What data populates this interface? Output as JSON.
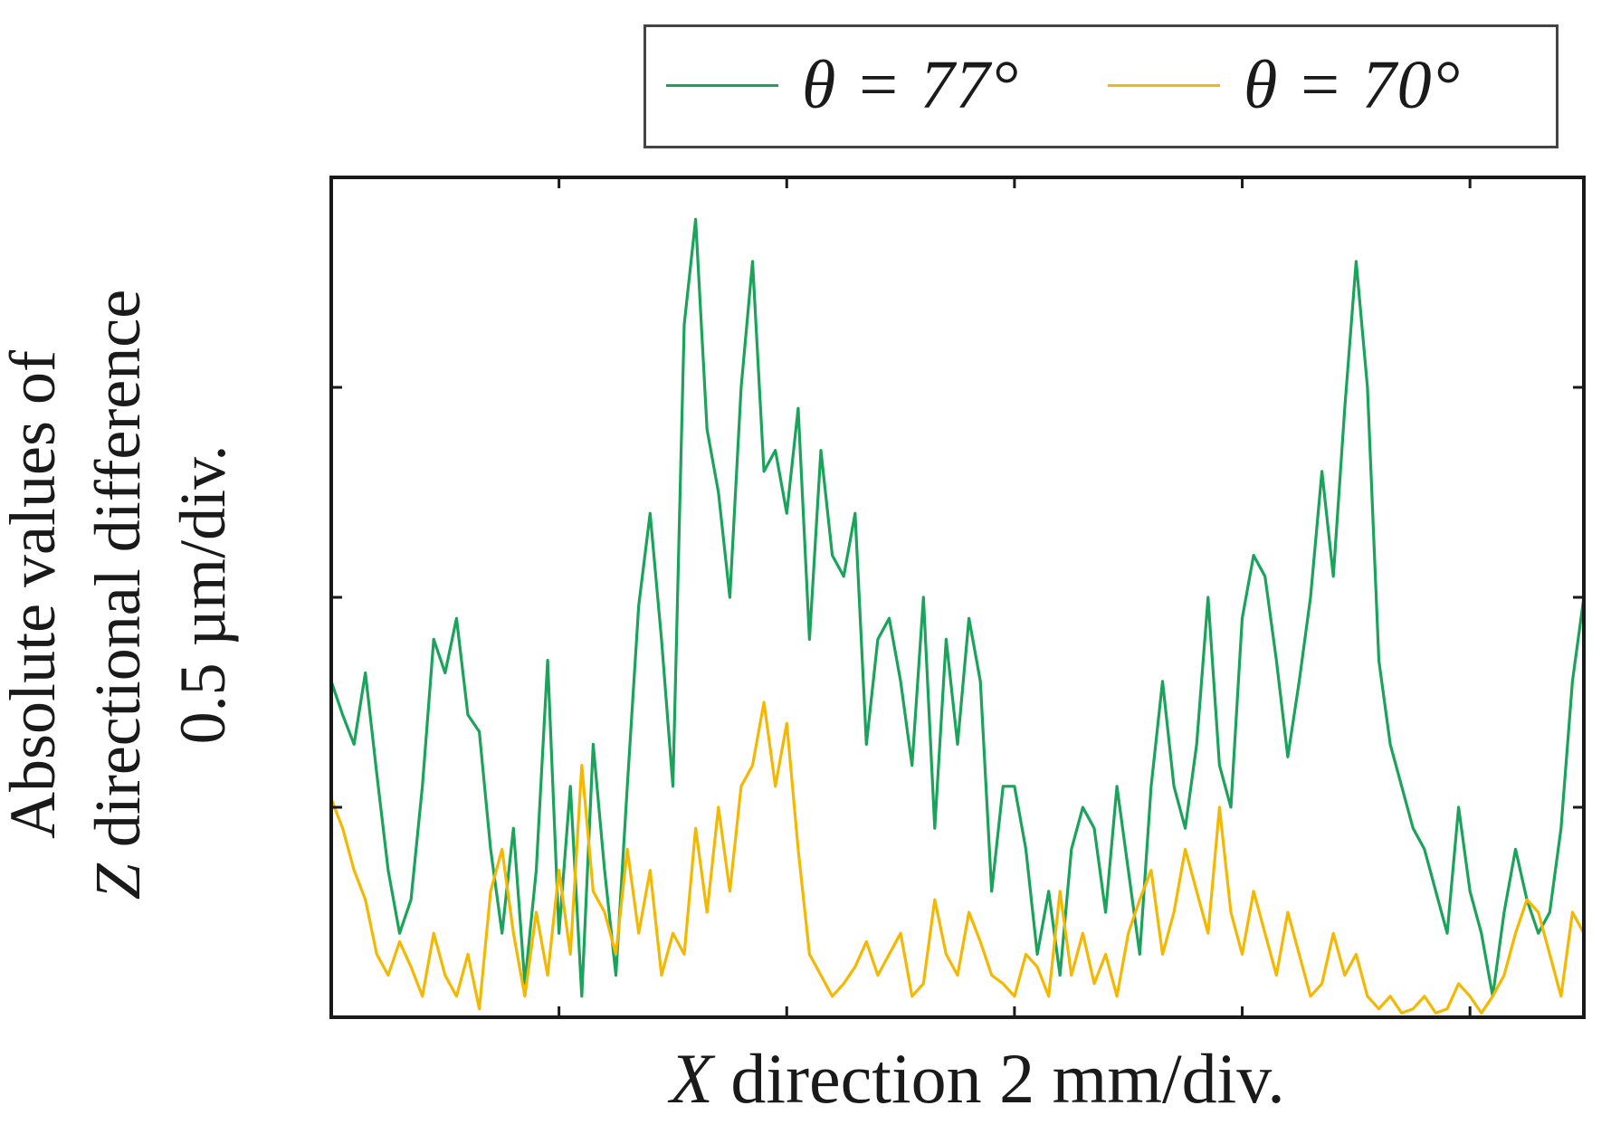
{
  "chart_data": {
    "type": "line",
    "title": "",
    "xlabel_var": "X",
    "xlabel_rest": " direction 2 mm/div.",
    "ylabel_lines": [
      "Absolute values of",
      " directional difference",
      "0.5 µm/div."
    ],
    "ylabel_var": "Z",
    "x_unit_per_div": "2 mm/div.",
    "y_unit_per_div": "0.5 µm/div.",
    "xlim": [
      0,
      11
    ],
    "ylim": [
      0,
      2
    ],
    "x_divisions": 5.5,
    "y_divisions": 4,
    "legend_position": "top-right (outside plot)",
    "series": [
      {
        "name": "θ = 77°",
        "color": "#1aa35a",
        "x": [
          0.0,
          0.1,
          0.2,
          0.3,
          0.4,
          0.5,
          0.6,
          0.7,
          0.8,
          0.9,
          1.0,
          1.1,
          1.2,
          1.3,
          1.4,
          1.5,
          1.6,
          1.7,
          1.8,
          1.9,
          2.0,
          2.1,
          2.2,
          2.3,
          2.4,
          2.5,
          2.6,
          2.7,
          2.8,
          2.9,
          3.0,
          3.1,
          3.2,
          3.3,
          3.4,
          3.5,
          3.6,
          3.7,
          3.8,
          3.9,
          4.0,
          4.1,
          4.2,
          4.3,
          4.4,
          4.5,
          4.6,
          4.7,
          4.8,
          4.9,
          5.0,
          5.1,
          5.2,
          5.3,
          5.4,
          5.5,
          5.6,
          5.7,
          5.8,
          5.9,
          6.0,
          6.1,
          6.2,
          6.3,
          6.4,
          6.5,
          6.6,
          6.7,
          6.8,
          6.9,
          7.0,
          7.1,
          7.2,
          7.3,
          7.4,
          7.5,
          7.6,
          7.7,
          7.8,
          7.9,
          8.0,
          8.1,
          8.2,
          8.3,
          8.4,
          8.5,
          8.6,
          8.7,
          8.8,
          8.9,
          9.0,
          9.1,
          9.2,
          9.3,
          9.4,
          9.5,
          9.6,
          9.7,
          9.8,
          9.9,
          10.0,
          10.1,
          10.2,
          10.3,
          10.4,
          10.5,
          10.6,
          10.7,
          10.8,
          10.9,
          11.0
        ],
        "values": [
          0.8,
          0.72,
          0.65,
          0.82,
          0.58,
          0.35,
          0.2,
          0.28,
          0.55,
          0.9,
          0.82,
          0.95,
          0.72,
          0.68,
          0.4,
          0.2,
          0.45,
          0.08,
          0.35,
          0.85,
          0.2,
          0.55,
          0.05,
          0.65,
          0.35,
          0.1,
          0.55,
          0.98,
          1.2,
          0.9,
          0.55,
          1.65,
          1.9,
          1.4,
          1.25,
          1.0,
          1.5,
          1.8,
          1.3,
          1.35,
          1.2,
          1.45,
          0.9,
          1.35,
          1.1,
          1.05,
          1.2,
          0.65,
          0.9,
          0.95,
          0.8,
          0.6,
          1.0,
          0.45,
          0.9,
          0.65,
          0.95,
          0.8,
          0.3,
          0.55,
          0.55,
          0.4,
          0.15,
          0.3,
          0.1,
          0.4,
          0.5,
          0.45,
          0.25,
          0.55,
          0.35,
          0.15,
          0.55,
          0.8,
          0.55,
          0.45,
          0.65,
          1.0,
          0.6,
          0.5,
          0.95,
          1.1,
          1.05,
          0.85,
          0.62,
          0.8,
          1.0,
          1.3,
          1.05,
          1.45,
          1.8,
          1.5,
          0.85,
          0.65,
          0.55,
          0.45,
          0.4,
          0.3,
          0.2,
          0.5,
          0.3,
          0.2,
          0.05,
          0.25,
          0.4,
          0.28,
          0.2,
          0.25,
          0.45,
          0.8,
          1.0
        ]
      },
      {
        "name": "θ = 70°",
        "color": "#f5b800",
        "x": [
          0.0,
          0.1,
          0.2,
          0.3,
          0.4,
          0.5,
          0.6,
          0.7,
          0.8,
          0.9,
          1.0,
          1.1,
          1.2,
          1.3,
          1.4,
          1.5,
          1.6,
          1.7,
          1.8,
          1.9,
          2.0,
          2.1,
          2.2,
          2.3,
          2.4,
          2.5,
          2.6,
          2.7,
          2.8,
          2.9,
          3.0,
          3.1,
          3.2,
          3.3,
          3.4,
          3.5,
          3.6,
          3.7,
          3.8,
          3.9,
          4.0,
          4.1,
          4.2,
          4.3,
          4.4,
          4.5,
          4.6,
          4.7,
          4.8,
          4.9,
          5.0,
          5.1,
          5.2,
          5.3,
          5.4,
          5.5,
          5.6,
          5.7,
          5.8,
          5.9,
          6.0,
          6.1,
          6.2,
          6.3,
          6.4,
          6.5,
          6.6,
          6.7,
          6.8,
          6.9,
          7.0,
          7.1,
          7.2,
          7.3,
          7.4,
          7.5,
          7.6,
          7.7,
          7.8,
          7.9,
          8.0,
          8.1,
          8.2,
          8.3,
          8.4,
          8.5,
          8.6,
          8.7,
          8.8,
          8.9,
          9.0,
          9.1,
          9.2,
          9.3,
          9.4,
          9.5,
          9.6,
          9.7,
          9.8,
          9.9,
          10.0,
          10.1,
          10.2,
          10.3,
          10.4,
          10.5,
          10.6,
          10.7,
          10.8,
          10.9,
          11.0
        ],
        "values": [
          0.52,
          0.45,
          0.35,
          0.28,
          0.15,
          0.1,
          0.18,
          0.12,
          0.05,
          0.2,
          0.1,
          0.05,
          0.15,
          0.02,
          0.3,
          0.4,
          0.2,
          0.05,
          0.25,
          0.1,
          0.35,
          0.15,
          0.6,
          0.3,
          0.25,
          0.15,
          0.4,
          0.2,
          0.35,
          0.1,
          0.2,
          0.15,
          0.45,
          0.25,
          0.5,
          0.3,
          0.55,
          0.6,
          0.75,
          0.55,
          0.7,
          0.4,
          0.15,
          0.1,
          0.05,
          0.08,
          0.12,
          0.18,
          0.1,
          0.15,
          0.2,
          0.05,
          0.08,
          0.28,
          0.15,
          0.1,
          0.25,
          0.18,
          0.1,
          0.08,
          0.05,
          0.15,
          0.12,
          0.05,
          0.3,
          0.1,
          0.2,
          0.08,
          0.15,
          0.05,
          0.2,
          0.28,
          0.35,
          0.15,
          0.25,
          0.4,
          0.3,
          0.2,
          0.5,
          0.25,
          0.15,
          0.3,
          0.2,
          0.1,
          0.25,
          0.15,
          0.05,
          0.08,
          0.2,
          0.1,
          0.15,
          0.05,
          0.02,
          0.05,
          0.01,
          0.02,
          0.05,
          0.01,
          0.02,
          0.08,
          0.05,
          0.01,
          0.05,
          0.1,
          0.2,
          0.28,
          0.25,
          0.15,
          0.05,
          0.25,
          0.2
        ]
      }
    ]
  }
}
